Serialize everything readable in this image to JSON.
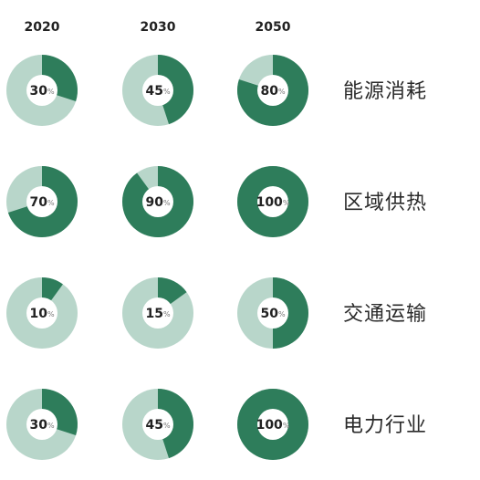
{
  "chart_data": {
    "type": "pie",
    "variant": "donut-matrix",
    "columns": [
      "2020",
      "2030",
      "2050"
    ],
    "rows": [
      {
        "label": "能源消耗",
        "values": [
          30,
          45,
          80
        ]
      },
      {
        "label": "区域供热",
        "values": [
          70,
          90,
          100
        ]
      },
      {
        "label": "交通运输",
        "values": [
          10,
          15,
          50
        ]
      },
      {
        "label": "电力行业",
        "values": [
          30,
          45,
          100
        ]
      }
    ],
    "unit": "%",
    "max": 100,
    "colors": {
      "filled": "#2e7d5b",
      "remainder": "#b8d6ca",
      "center": "#ffffff"
    }
  }
}
